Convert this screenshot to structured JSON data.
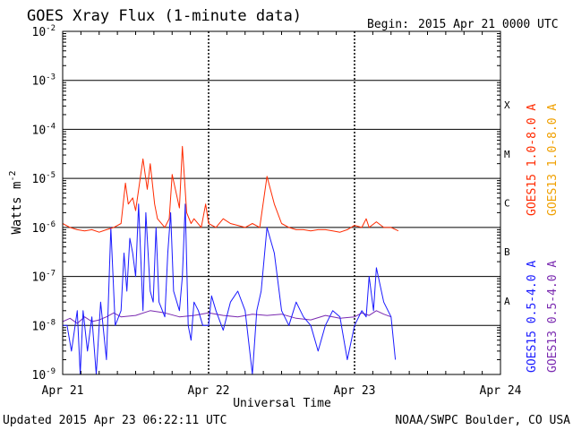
{
  "chart_data": {
    "type": "line",
    "title": "GOES Xray Flux (1-minute data)",
    "begin_label": "Begin:",
    "begin_value": "2015 Apr 21 0000 UTC",
    "xlabel": "Universal Time",
    "ylabel_main": "Watts m",
    "ylabel_sup": "-2",
    "yscale": "log",
    "ylim": [
      1e-09,
      0.01
    ],
    "xlim": [
      0,
      3
    ],
    "x_ticks": [
      {
        "x": 0,
        "label": "Apr 21"
      },
      {
        "x": 1,
        "label": "Apr 22"
      },
      {
        "x": 2,
        "label": "Apr 23"
      },
      {
        "x": 3,
        "label": "Apr 24"
      }
    ],
    "y_ticks": [
      {
        "exp": -2,
        "label": "-2"
      },
      {
        "exp": -3,
        "label": "-3"
      },
      {
        "exp": -4,
        "label": "-4"
      },
      {
        "exp": -5,
        "label": "-5"
      },
      {
        "exp": -6,
        "label": "-6"
      },
      {
        "exp": -7,
        "label": "-7"
      },
      {
        "exp": -8,
        "label": "-8"
      },
      {
        "exp": -9,
        "label": "-9"
      }
    ],
    "y_tick_base": "10",
    "flare_classes": [
      {
        "label": "X",
        "exp": -3.5
      },
      {
        "label": "M",
        "exp": -4.5
      },
      {
        "label": "C",
        "exp": -5.5
      },
      {
        "label": "B",
        "exp": -6.5
      },
      {
        "label": "A",
        "exp": -7.5
      }
    ],
    "grid": "horizontal lines at each decade; dotted vertical lines at day boundaries",
    "series": [
      {
        "name": "GOES15 1.0-8.0 A",
        "color": "#ff2a00",
        "x": [
          0,
          0.05,
          0.1,
          0.15,
          0.2,
          0.25,
          0.3,
          0.35,
          0.4,
          0.43,
          0.45,
          0.48,
          0.5,
          0.55,
          0.58,
          0.6,
          0.63,
          0.65,
          0.7,
          0.73,
          0.75,
          0.8,
          0.82,
          0.85,
          0.88,
          0.9,
          0.95,
          0.98,
          1.0,
          1.05,
          1.1,
          1.15,
          1.2,
          1.25,
          1.3,
          1.35,
          1.4,
          1.45,
          1.5,
          1.55,
          1.6,
          1.65,
          1.7,
          1.75,
          1.8,
          1.85,
          1.9,
          1.95,
          2.0,
          2.05,
          2.08,
          2.1,
          2.15,
          2.2,
          2.25,
          2.3
        ],
        "y": [
          1.2e-06,
          1e-06,
          9e-07,
          8.5e-07,
          9e-07,
          8e-07,
          9e-07,
          1e-06,
          1.2e-06,
          8e-06,
          3e-06,
          4e-06,
          2.2e-06,
          2.5e-05,
          6e-06,
          2e-05,
          3e-06,
          1.5e-06,
          1e-06,
          1.5e-06,
          1.2e-05,
          2.5e-06,
          4.5e-05,
          2e-06,
          1.2e-06,
          1.5e-06,
          1e-06,
          3e-06,
          1.2e-06,
          1e-06,
          1.5e-06,
          1.2e-06,
          1.1e-06,
          1e-06,
          1.2e-06,
          1e-06,
          1.1e-05,
          3e-06,
          1.2e-06,
          1e-06,
          9e-07,
          9e-07,
          8.5e-07,
          9e-07,
          9e-07,
          8.5e-07,
          8e-07,
          9e-07,
          1.1e-06,
          1e-06,
          1.5e-06,
          1e-06,
          1.3e-06,
          1e-06,
          1e-06,
          8.5e-07
        ]
      },
      {
        "name": "GOES15 0.5-4.0 A",
        "color": "#1a1aff",
        "x": [
          0,
          0.03,
          0.06,
          0.1,
          0.12,
          0.14,
          0.17,
          0.2,
          0.23,
          0.26,
          0.3,
          0.33,
          0.36,
          0.4,
          0.42,
          0.44,
          0.46,
          0.48,
          0.5,
          0.52,
          0.55,
          0.57,
          0.6,
          0.62,
          0.64,
          0.66,
          0.7,
          0.72,
          0.74,
          0.76,
          0.8,
          0.82,
          0.84,
          0.86,
          0.88,
          0.9,
          0.93,
          0.96,
          1.0,
          1.02,
          1.05,
          1.1,
          1.15,
          1.2,
          1.25,
          1.3,
          1.33,
          1.36,
          1.4,
          1.45,
          1.5,
          1.55,
          1.6,
          1.65,
          1.7,
          1.75,
          1.8,
          1.85,
          1.9,
          1.95,
          2.0,
          2.05,
          2.08,
          2.1,
          2.13,
          2.15,
          2.2,
          2.25,
          2.28
        ],
        "y": [
          1e-08,
          1e-08,
          3e-09,
          2e-08,
          1e-09,
          2e-08,
          3e-09,
          1.5e-08,
          1e-09,
          3e-08,
          2e-09,
          1e-06,
          1e-08,
          2e-08,
          3e-07,
          5e-08,
          6e-07,
          3e-07,
          1e-07,
          3e-06,
          2e-08,
          2e-06,
          5e-08,
          3e-08,
          1e-06,
          3e-08,
          1.5e-08,
          3e-07,
          2e-06,
          5e-08,
          2e-08,
          1e-07,
          3e-06,
          1e-08,
          5e-09,
          3e-08,
          2e-08,
          1e-08,
          1e-08,
          4e-08,
          2e-08,
          8e-09,
          3e-08,
          5e-08,
          2e-08,
          1e-09,
          2e-08,
          5e-08,
          1e-06,
          3e-07,
          2e-08,
          1e-08,
          3e-08,
          1.5e-08,
          1e-08,
          3e-09,
          1e-08,
          2e-08,
          1.5e-08,
          2e-09,
          1e-08,
          2e-08,
          1.5e-08,
          1e-07,
          2e-08,
          1.5e-07,
          3e-08,
          1.5e-08,
          2e-09
        ]
      },
      {
        "name": "GOES13 1.0-8.0 A",
        "color": "#f0a000",
        "x": [],
        "y": []
      },
      {
        "name": "GOES13 0.5-4.0 A",
        "color": "#7a2ab0",
        "x": [
          0,
          0.05,
          0.1,
          0.15,
          0.2,
          0.25,
          0.3,
          0.35,
          0.4,
          0.5,
          0.6,
          0.7,
          0.8,
          0.9,
          1.0,
          1.1,
          1.2,
          1.3,
          1.4,
          1.5,
          1.6,
          1.7,
          1.8,
          1.9,
          2.0,
          2.05,
          2.1,
          2.15,
          2.2,
          2.25
        ],
        "y": [
          1.2e-08,
          1.4e-08,
          1.1e-08,
          1.5e-08,
          1.2e-08,
          1.3e-08,
          1.5e-08,
          1.8e-08,
          1.5e-08,
          1.6e-08,
          2e-08,
          1.8e-08,
          1.5e-08,
          1.6e-08,
          1.8e-08,
          1.6e-08,
          1.5e-08,
          1.7e-08,
          1.6e-08,
          1.7e-08,
          1.4e-08,
          1.3e-08,
          1.6e-08,
          1.4e-08,
          1.5e-08,
          1.8e-08,
          1.6e-08,
          2e-08,
          1.7e-08,
          1.5e-08
        ]
      }
    ]
  },
  "footer": {
    "updated": "Updated 2015 Apr 23 06:22:11 UTC",
    "credit": "NOAA/SWPC Boulder, CO USA"
  }
}
